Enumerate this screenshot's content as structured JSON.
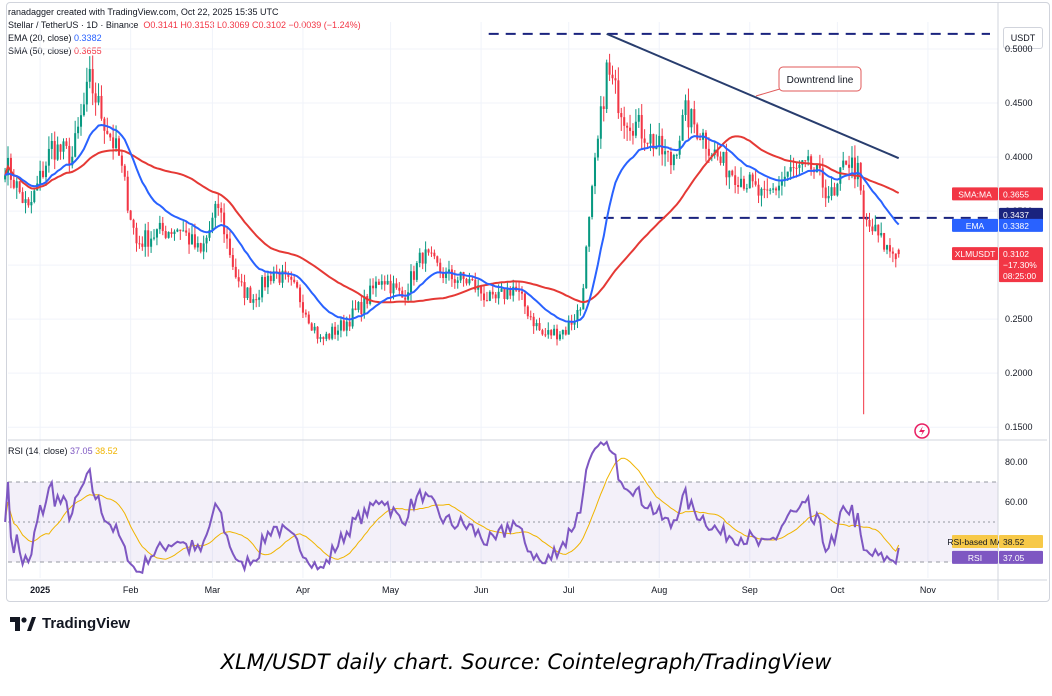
{
  "header": {
    "byline": "ranadagger created with TradingView.com, Oct 22, 2025 15:35 UTC",
    "symbol": "Stellar / TetherUS · 1D · Binance",
    "ohlc": "O0.3141 H0.3153 L0.3069 C0.3102 −0.0039 (−1.24%)",
    "ema_label": "EMA (20, close)",
    "ema_value": "0.3382",
    "sma_label": "SMA (50, close)",
    "sma_value": "0.3655",
    "rsi_label": "RSI (14, close)",
    "rsi_value": "37.05",
    "rsi_ma_value": "38.52"
  },
  "currency": "USDT",
  "annotation": "Downtrend line",
  "badges": {
    "sma": {
      "label": "SMA:MA",
      "value": "0.3655"
    },
    "level": "0.3437",
    "ema": {
      "label": "EMA",
      "value": "0.3382"
    },
    "price": {
      "label": "XLMUSDT",
      "value": "0.3102",
      "change": "−17.30%",
      "countdown": "08:25:00"
    },
    "rsi_ma": {
      "label": "RSI-based MA",
      "value": "38.52"
    },
    "rsi": {
      "label": "RSI",
      "value": "37.05"
    }
  },
  "logo": "TradingView",
  "caption": "XLM/USDT daily chart. Source: Cointelegraph/TradingView",
  "colors": {
    "up": "#089981",
    "down": "#f23645",
    "ema": "#2962ff",
    "sma": "#e53935",
    "rsi": "#7e57c2",
    "rsi_ma": "#f0b400",
    "trendline": "#283d6e"
  },
  "chart_data": [
    {
      "type": "candlestick",
      "title": "Stellar / TetherUS · 1D · Binance",
      "ylabel": "USDT",
      "x_ticks": [
        "2025",
        "Feb",
        "Mar",
        "Apr",
        "May",
        "Jun",
        "Jul",
        "Aug",
        "Sep",
        "Oct",
        "Nov"
      ],
      "y_ticks": [
        "0.5000",
        "0.4500",
        "0.4000",
        "0.3500",
        "0.3000",
        "0.2500",
        "0.2000",
        "0.1500"
      ],
      "ylim": [
        0.14,
        0.525
      ],
      "close_anchors": [
        [
          "2024-12-20",
          0.395
        ],
        [
          "2024-12-28",
          0.35
        ],
        [
          "2025-01-05",
          0.41
        ],
        [
          "2025-01-12",
          0.4
        ],
        [
          "2025-01-18",
          0.47
        ],
        [
          "2025-01-22",
          0.44
        ],
        [
          "2025-01-28",
          0.4
        ],
        [
          "2025-02-03",
          0.32
        ],
        [
          "2025-02-10",
          0.33
        ],
        [
          "2025-02-18",
          0.335
        ],
        [
          "2025-02-25",
          0.31
        ],
        [
          "2025-03-03",
          0.355
        ],
        [
          "2025-03-10",
          0.28
        ],
        [
          "2025-03-15",
          0.27
        ],
        [
          "2025-03-22",
          0.295
        ],
        [
          "2025-03-30",
          0.275
        ],
        [
          "2025-04-07",
          0.23
        ],
        [
          "2025-04-15",
          0.245
        ],
        [
          "2025-04-22",
          0.265
        ],
        [
          "2025-04-28",
          0.29
        ],
        [
          "2025-05-05",
          0.27
        ],
        [
          "2025-05-12",
          0.31
        ],
        [
          "2025-05-20",
          0.29
        ],
        [
          "2025-05-28",
          0.285
        ],
        [
          "2025-06-05",
          0.265
        ],
        [
          "2025-06-12",
          0.28
        ],
        [
          "2025-06-22",
          0.235
        ],
        [
          "2025-06-30",
          0.24
        ],
        [
          "2025-07-05",
          0.26
        ],
        [
          "2025-07-10",
          0.39
        ],
        [
          "2025-07-14",
          0.48
        ],
        [
          "2025-07-20",
          0.44
        ],
        [
          "2025-07-28",
          0.42
        ],
        [
          "2025-08-05",
          0.395
        ],
        [
          "2025-08-10",
          0.44
        ],
        [
          "2025-08-16",
          0.42
        ],
        [
          "2025-08-22",
          0.395
        ],
        [
          "2025-08-30",
          0.38
        ],
        [
          "2025-09-06",
          0.36
        ],
        [
          "2025-09-14",
          0.385
        ],
        [
          "2025-09-22",
          0.39
        ],
        [
          "2025-09-30",
          0.36
        ],
        [
          "2025-10-04",
          0.4
        ],
        [
          "2025-10-08",
          0.385
        ],
        [
          "2025-10-10",
          0.34
        ],
        [
          "2025-10-14",
          0.33
        ],
        [
          "2025-10-18",
          0.315
        ],
        [
          "2025-10-22",
          0.3102
        ]
      ],
      "last": {
        "open": 0.3141,
        "high": 0.3153,
        "low": 0.3069,
        "close": 0.3102,
        "change": -0.0039,
        "change_pct": -1.24
      },
      "flash_crash_low": 0.162,
      "horizontal_levels": [
        0.514,
        0.3437
      ],
      "trendline": {
        "from": [
          "2025-07-14",
          0.514
        ],
        "to": [
          "2025-10-22",
          0.399
        ],
        "label": "Downtrend line"
      },
      "series": [
        {
          "name": "EMA (20, close)",
          "last": 0.3382
        },
        {
          "name": "SMA (50, close)",
          "last": 0.3655
        }
      ]
    },
    {
      "type": "line",
      "title": "RSI (14, close)",
      "y_ticks": [
        "80.00",
        "60.00"
      ],
      "ylim": [
        22,
        90
      ],
      "bands": [
        30,
        50,
        70
      ],
      "series": [
        {
          "name": "RSI",
          "last": 37.05
        },
        {
          "name": "RSI-based MA",
          "last": 38.52
        }
      ]
    }
  ]
}
